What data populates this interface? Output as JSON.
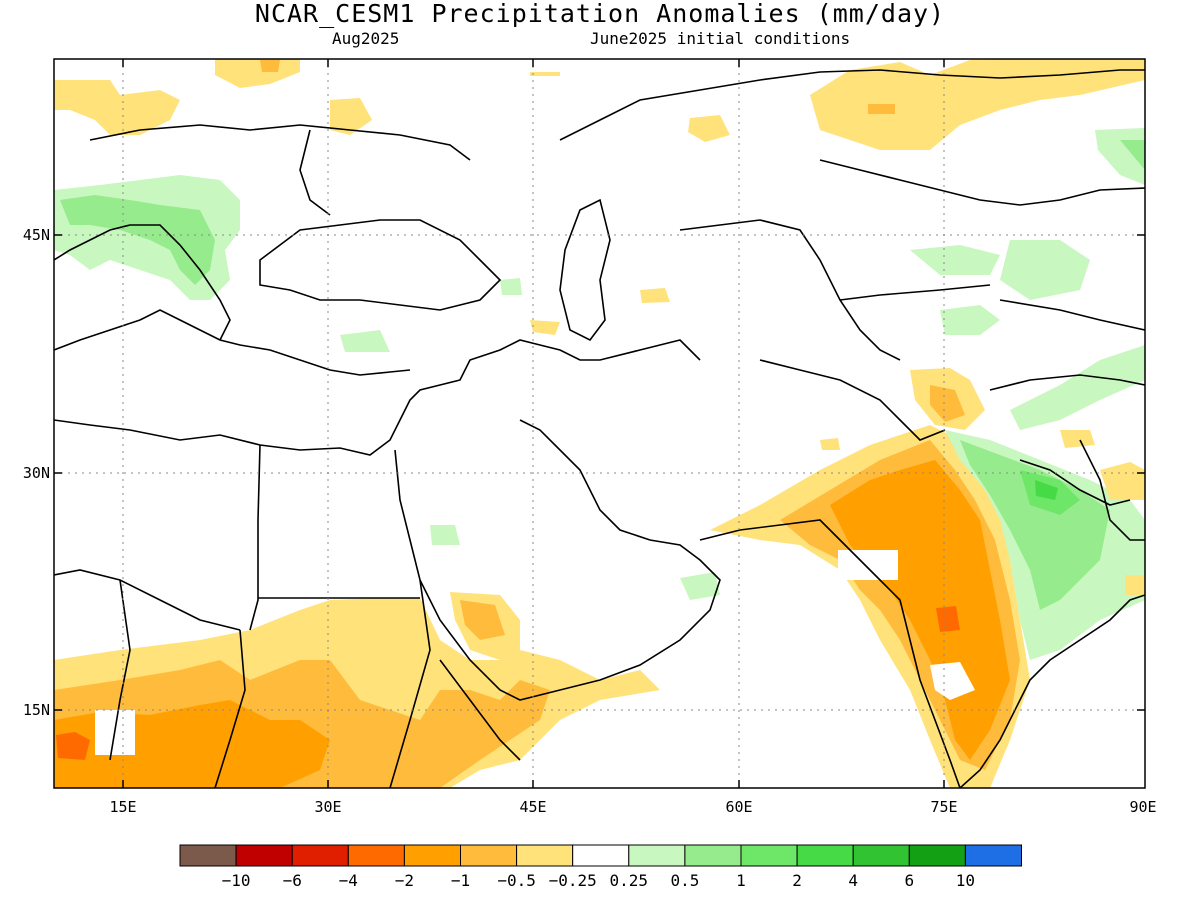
{
  "header": {
    "title": "NCAR_CESM1 Precipitation Anomalies (mm/day)",
    "valid_month": "Aug2025",
    "init_conditions": "June2025 initial conditions"
  },
  "axes": {
    "lon_ticks": [
      "15E",
      "30E",
      "45E",
      "60E",
      "75E",
      "90E"
    ],
    "lat_ticks": [
      "45N",
      "30N",
      "15N"
    ],
    "lon_range": [
      10,
      90
    ],
    "lat_range": [
      10,
      55
    ]
  },
  "colorbar": {
    "colors": [
      "#7b5a4b",
      "#c00000",
      "#e01e00",
      "#ff6a00",
      "#ffa000",
      "#ffbb3c",
      "#ffe27a",
      "#ffffff",
      "#c8f7c0",
      "#96ec8c",
      "#6ee668",
      "#46db46",
      "#32c332",
      "#14a014",
      "#1e6ee6"
    ],
    "labels": [
      "−10",
      "−6",
      "−4",
      "−2",
      "−1",
      "−0.5",
      "−0.25",
      "0.25",
      "0.5",
      "1",
      "2",
      "4",
      "6",
      "10"
    ]
  }
}
